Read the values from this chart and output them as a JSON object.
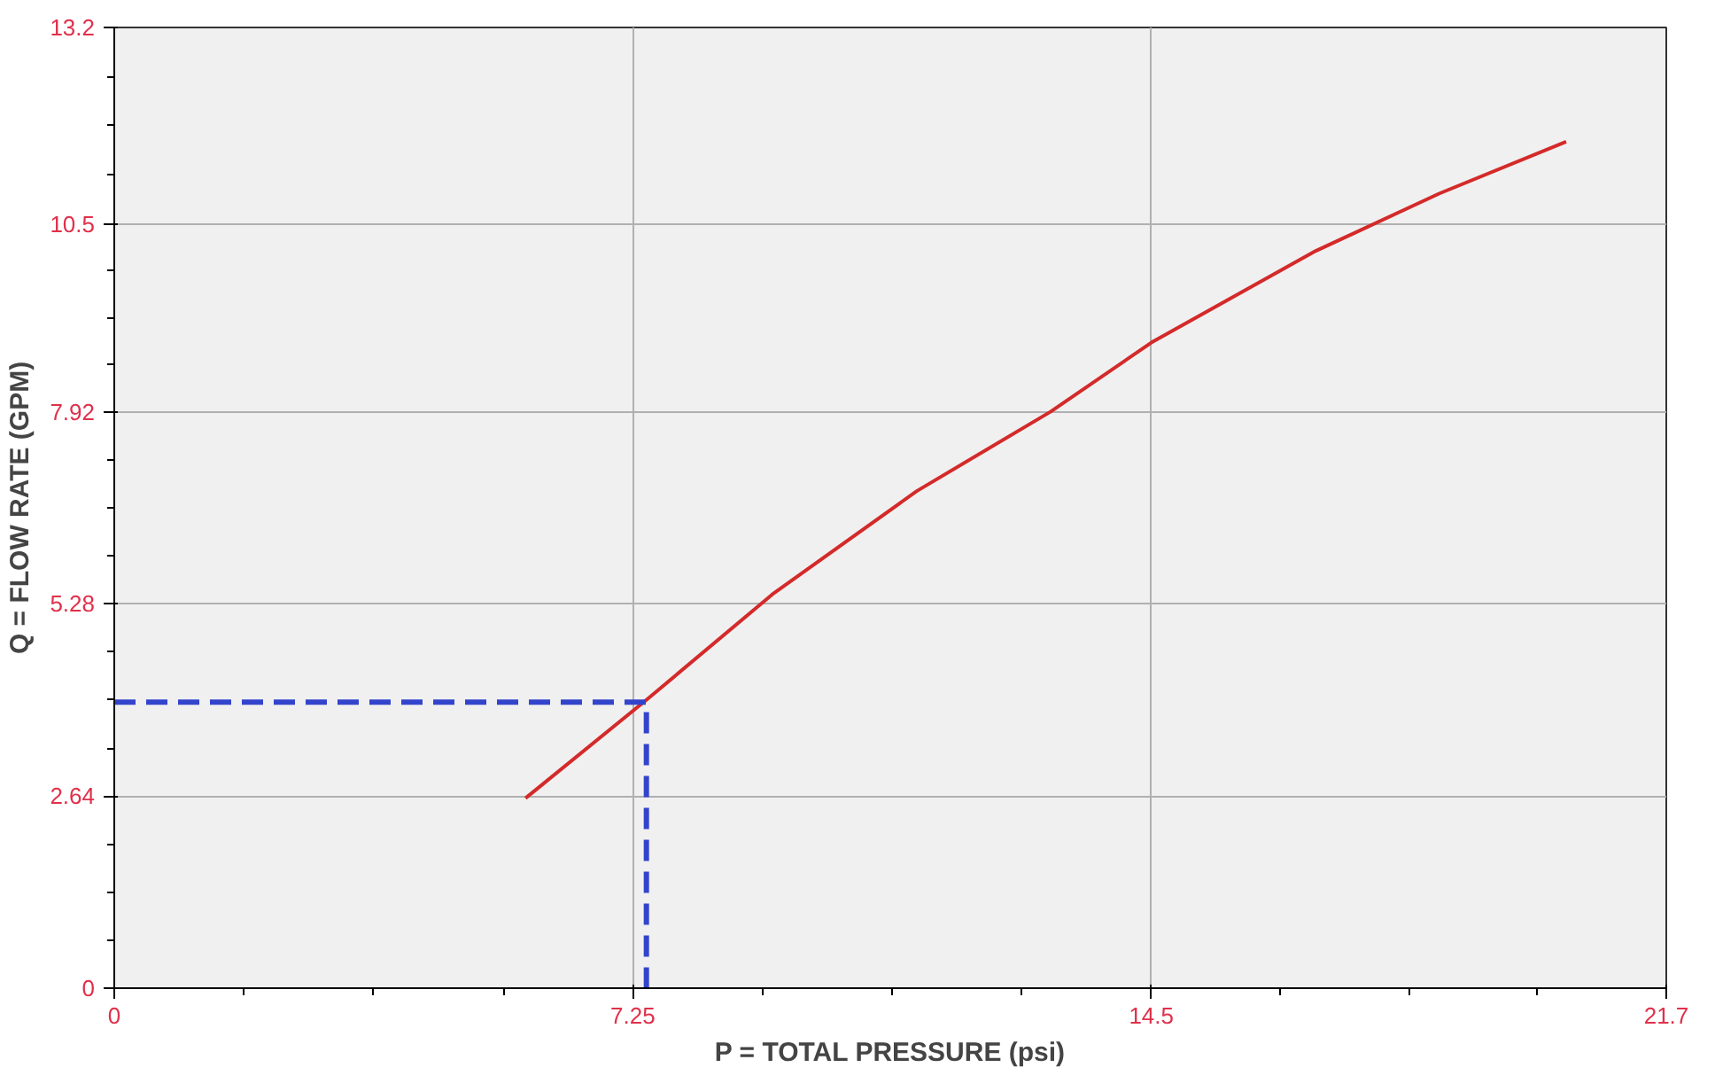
{
  "chart_data": {
    "type": "line",
    "xlabel": "P = TOTAL PRESSURE (psi)",
    "ylabel": "Q = FLOW RATE (GPM)",
    "series": [
      {
        "color": "#d42a2a",
        "x": [
          5.75,
          7.44,
          9.2,
          11.22,
          13.09,
          14.5,
          16.8,
          18.53,
          20.3
        ],
        "values": [
          2.61,
          3.96,
          5.41,
          6.83,
          7.92,
          8.87,
          10.13,
          10.92,
          11.63
        ]
      },
      {
        "color": "#3344cc",
        "line_style": "dashed",
        "x": [
          0,
          7.44,
          7.44
        ],
        "values": [
          3.93,
          3.93,
          0
        ]
      }
    ],
    "xlim": [
      0,
      21.7
    ],
    "ylim": [
      0,
      13.2
    ],
    "xticks": [
      0,
      7.25,
      14.5,
      21.7
    ],
    "yticks": [
      0,
      2.64,
      5.28,
      7.92,
      10.5,
      13.2
    ],
    "grid": true,
    "marker": "none"
  }
}
